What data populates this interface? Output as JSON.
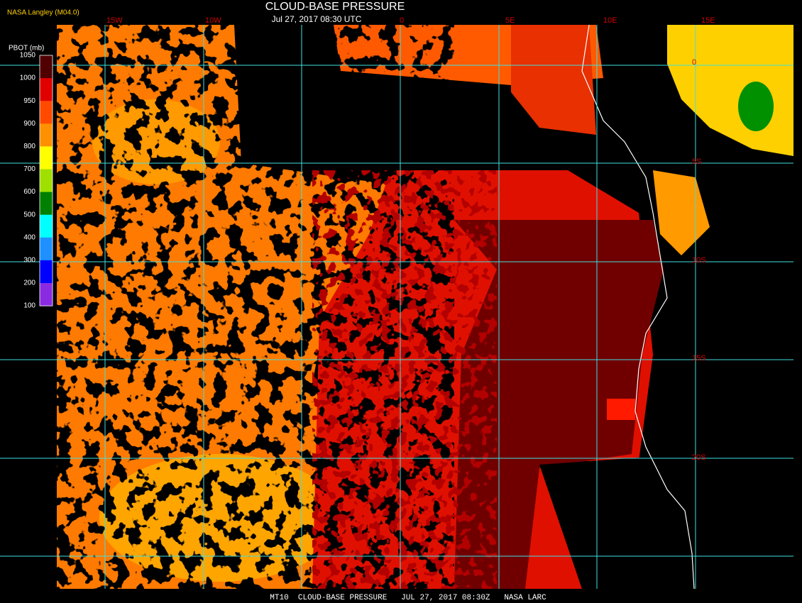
{
  "header": {
    "title": "CLOUD-BASE PRESSURE",
    "subtitle": "Jul 27, 2017 08:30 UTC",
    "source": "NASA Langley (M04.0)"
  },
  "legend": {
    "title": "PBOT (mb)",
    "labels": [
      "1050",
      "1000",
      "950",
      "900",
      "800",
      "700",
      "600",
      "500",
      "400",
      "300",
      "200",
      "100"
    ],
    "colors": [
      "#500000",
      "#e00000",
      "#ff4a00",
      "#ff9000",
      "#ffff00",
      "#a0e000",
      "#008000",
      "#00ffff",
      "#1e90ff",
      "#0000ff",
      "#8a2be2"
    ]
  },
  "map": {
    "longitude_labels": [
      "15W",
      "10W",
      "0",
      "5E",
      "10E",
      "15E"
    ],
    "latitude_labels": [
      "0",
      "5S",
      "10S",
      "15S",
      "20S"
    ]
  },
  "footer": {
    "text": "MT10  CLOUD-BASE PRESSURE   JUL 27, 2017 08:30Z   NASA LARC"
  }
}
